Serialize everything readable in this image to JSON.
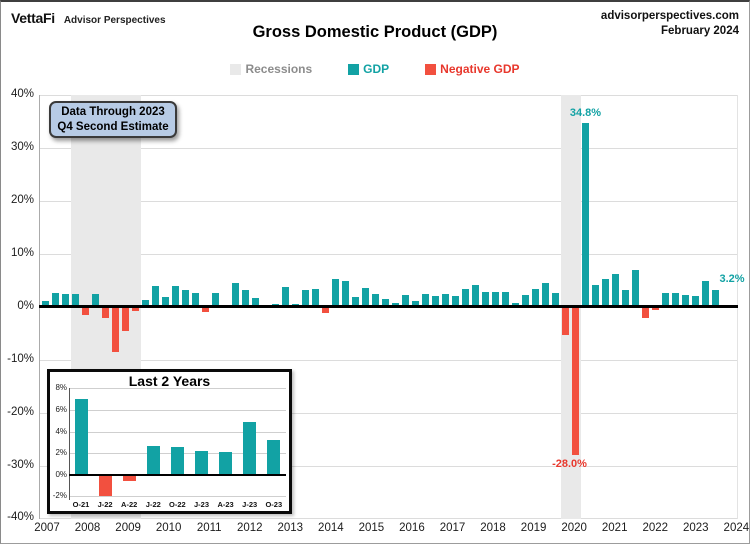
{
  "header": {
    "logo": "VettaFi",
    "logo_sub": "Advisor Perspectives",
    "site": "advisorperspectives.com",
    "date": "February 2024"
  },
  "title": "Gross Domestic Product (GDP)",
  "legend": [
    {
      "label": "Recessions",
      "swatch": "#E9E9E9",
      "text_color": "#8C8C8C"
    },
    {
      "label": "GDP",
      "swatch": "#12A2A4",
      "text_color": "#12A2A4"
    },
    {
      "label": "Negative GDP",
      "swatch": "#F2503F",
      "text_color": "#E8382D"
    }
  ],
  "note_box": {
    "line1": "Data Through 2023",
    "line2": "Q4 Second Estimate",
    "fill": "#B7CBE5"
  },
  "chart_data": [
    {
      "type": "bar",
      "name": "gdp-quarterly",
      "title": "Gross Domestic Product (GDP)",
      "start_year": 2007,
      "frequency": "quarterly",
      "values": [
        1.2,
        2.6,
        2.4,
        2.5,
        -1.6,
        2.4,
        -2.1,
        -8.5,
        -4.6,
        -0.7,
        1.4,
        4.0,
        1.9,
        3.9,
        3.2,
        2.6,
        -0.9,
        2.7,
        -0.1,
        4.6,
        3.3,
        1.7,
        0.4,
        0.6,
        3.7,
        0.5,
        3.2,
        3.4,
        -1.1,
        5.3,
        5.0,
        1.9,
        3.5,
        2.4,
        1.6,
        0.7,
        2.2,
        1.2,
        2.4,
        2.0,
        2.4,
        2.0,
        3.4,
        4.1,
        2.8,
        2.8,
        2.9,
        0.7,
        2.2,
        3.4,
        4.6,
        2.6,
        -5.3,
        -28.0,
        34.8,
        4.2,
        5.2,
        6.2,
        3.3,
        7.0,
        -2.0,
        -0.6,
        2.7,
        2.6,
        2.2,
        2.1,
        4.9,
        3.2
      ],
      "x_tick_labels": [
        "2007",
        "2008",
        "2009",
        "2010",
        "2011",
        "2012",
        "2013",
        "2014",
        "2015",
        "2016",
        "2017",
        "2018",
        "2019",
        "2020",
        "2021",
        "2022",
        "2023",
        "2024"
      ],
      "y_tick_labels": [
        "40%",
        "30%",
        "20%",
        "10%",
        "0%",
        "-10%",
        "-20%",
        "-30%",
        "-40%"
      ],
      "ylim": [
        -40,
        40
      ],
      "grid": "horizontal",
      "legend_position": "top",
      "positive_color": "#12A2A4",
      "negative_color": "#F2503F",
      "recession_color": "#E9E9E9",
      "recessions": [
        {
          "from": "2007 Q4",
          "to": "2009 Q2"
        },
        {
          "from": "2020 Q1",
          "to": "2020 Q2"
        }
      ],
      "callouts": [
        {
          "quarter": "2020 Q3",
          "text": "34.8%",
          "color": "#12A2A4",
          "placement": "above"
        },
        {
          "quarter": "2020 Q2",
          "text": "-28.0%",
          "color": "#E8382D",
          "placement": "below"
        },
        {
          "quarter": "2023 Q4",
          "text": "3.2%",
          "color": "#12A2A4",
          "placement": "right"
        }
      ]
    },
    {
      "type": "bar",
      "name": "last-2-years-inset",
      "title": "Last 2 Years",
      "categories": [
        "O-21",
        "J-22",
        "A-22",
        "J-22",
        "O-22",
        "J-23",
        "A-23",
        "J-23",
        "O-23"
      ],
      "values": [
        7.0,
        -2.0,
        -0.6,
        2.7,
        2.6,
        2.2,
        2.1,
        4.9,
        3.2
      ],
      "y_tick_labels": [
        "8%",
        "6%",
        "4%",
        "2%",
        "0%",
        "-2%"
      ],
      "ylim": [
        -2.8,
        8.9
      ],
      "positive_color": "#12A2A4",
      "negative_color": "#F2503F"
    }
  ]
}
